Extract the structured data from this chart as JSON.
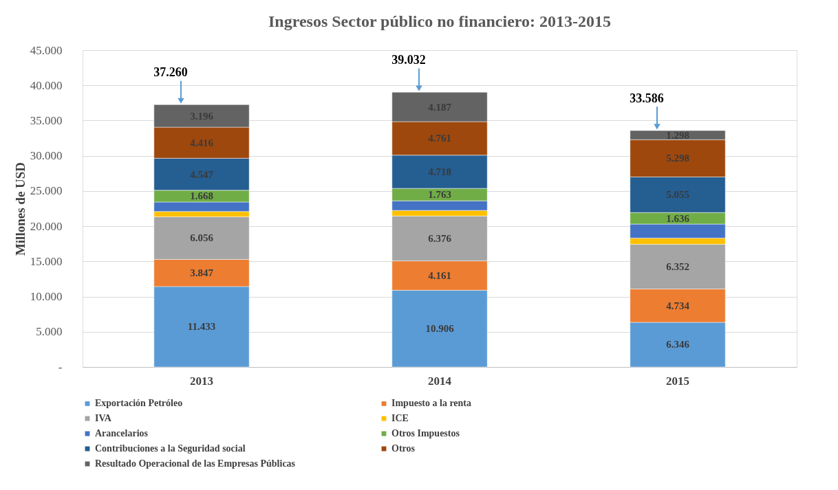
{
  "chart_data": {
    "type": "bar",
    "stacked": true,
    "title": "Ingresos Sector público no financiero: 2013-2015",
    "ylabel": "Millones de USD",
    "categories": [
      "2013",
      "2014",
      "2015"
    ],
    "series": [
      {
        "name": "Exportación Petróleo",
        "color": "#5b9bd5",
        "values": [
          11433,
          10906,
          6346
        ],
        "value_labels": [
          "11.433",
          "10.906",
          "6.346"
        ]
      },
      {
        "name": "Impuesto a la renta",
        "color": "#ed7d31",
        "values": [
          3847,
          4161,
          4734
        ],
        "value_labels": [
          "3.847",
          "4.161",
          "4.734"
        ]
      },
      {
        "name": "IVA",
        "color": "#a5a5a5",
        "values": [
          6056,
          6376,
          6352
        ],
        "value_labels": [
          "6.056",
          "6.376",
          "6.352"
        ]
      },
      {
        "name": "ICE",
        "color": "#ffc000",
        "values": [
          750,
          800,
          880
        ],
        "value_labels": [
          null,
          null,
          null
        ]
      },
      {
        "name": "Arancelarios",
        "color": "#4472c4",
        "values": [
          1347,
          1360,
          1987
        ],
        "value_labels": [
          null,
          null,
          null
        ]
      },
      {
        "name": "Otros Impuestos",
        "color": "#70ad47",
        "values": [
          1668,
          1763,
          1636
        ],
        "value_labels": [
          "1.668",
          "1.763",
          "1.636"
        ]
      },
      {
        "name": "Contribuciones a la Seguridad social",
        "color": "#255e91",
        "values": [
          4547,
          4718,
          5055
        ],
        "value_labels": [
          "4.547",
          "4.718",
          "5.055"
        ]
      },
      {
        "name": "Otros",
        "color": "#9e480e",
        "values": [
          4416,
          4761,
          5298
        ],
        "value_labels": [
          "4.416",
          "4.761",
          "5.298"
        ]
      },
      {
        "name": "Resultado Operacional de las Empresas Públicas",
        "color": "#636363",
        "values": [
          3196,
          4187,
          1298
        ],
        "value_labels": [
          "3.196",
          "4.187",
          "1.298"
        ]
      }
    ],
    "totals": [
      "37.260",
      "39.032",
      "33.586"
    ],
    "ylim": [
      0,
      45000
    ],
    "yticks": [
      {
        "value": 0,
        "label": "-"
      },
      {
        "value": 5000,
        "label": "5.000"
      },
      {
        "value": 10000,
        "label": "10.000"
      },
      {
        "value": 15000,
        "label": "15.000"
      },
      {
        "value": 20000,
        "label": "20.000"
      },
      {
        "value": 25000,
        "label": "25.000"
      },
      {
        "value": 30000,
        "label": "30.000"
      },
      {
        "value": 35000,
        "label": "35.000"
      },
      {
        "value": 40000,
        "label": "40.000"
      },
      {
        "value": 45000,
        "label": "45.000"
      }
    ],
    "grid": "y",
    "legend": "bottom"
  }
}
